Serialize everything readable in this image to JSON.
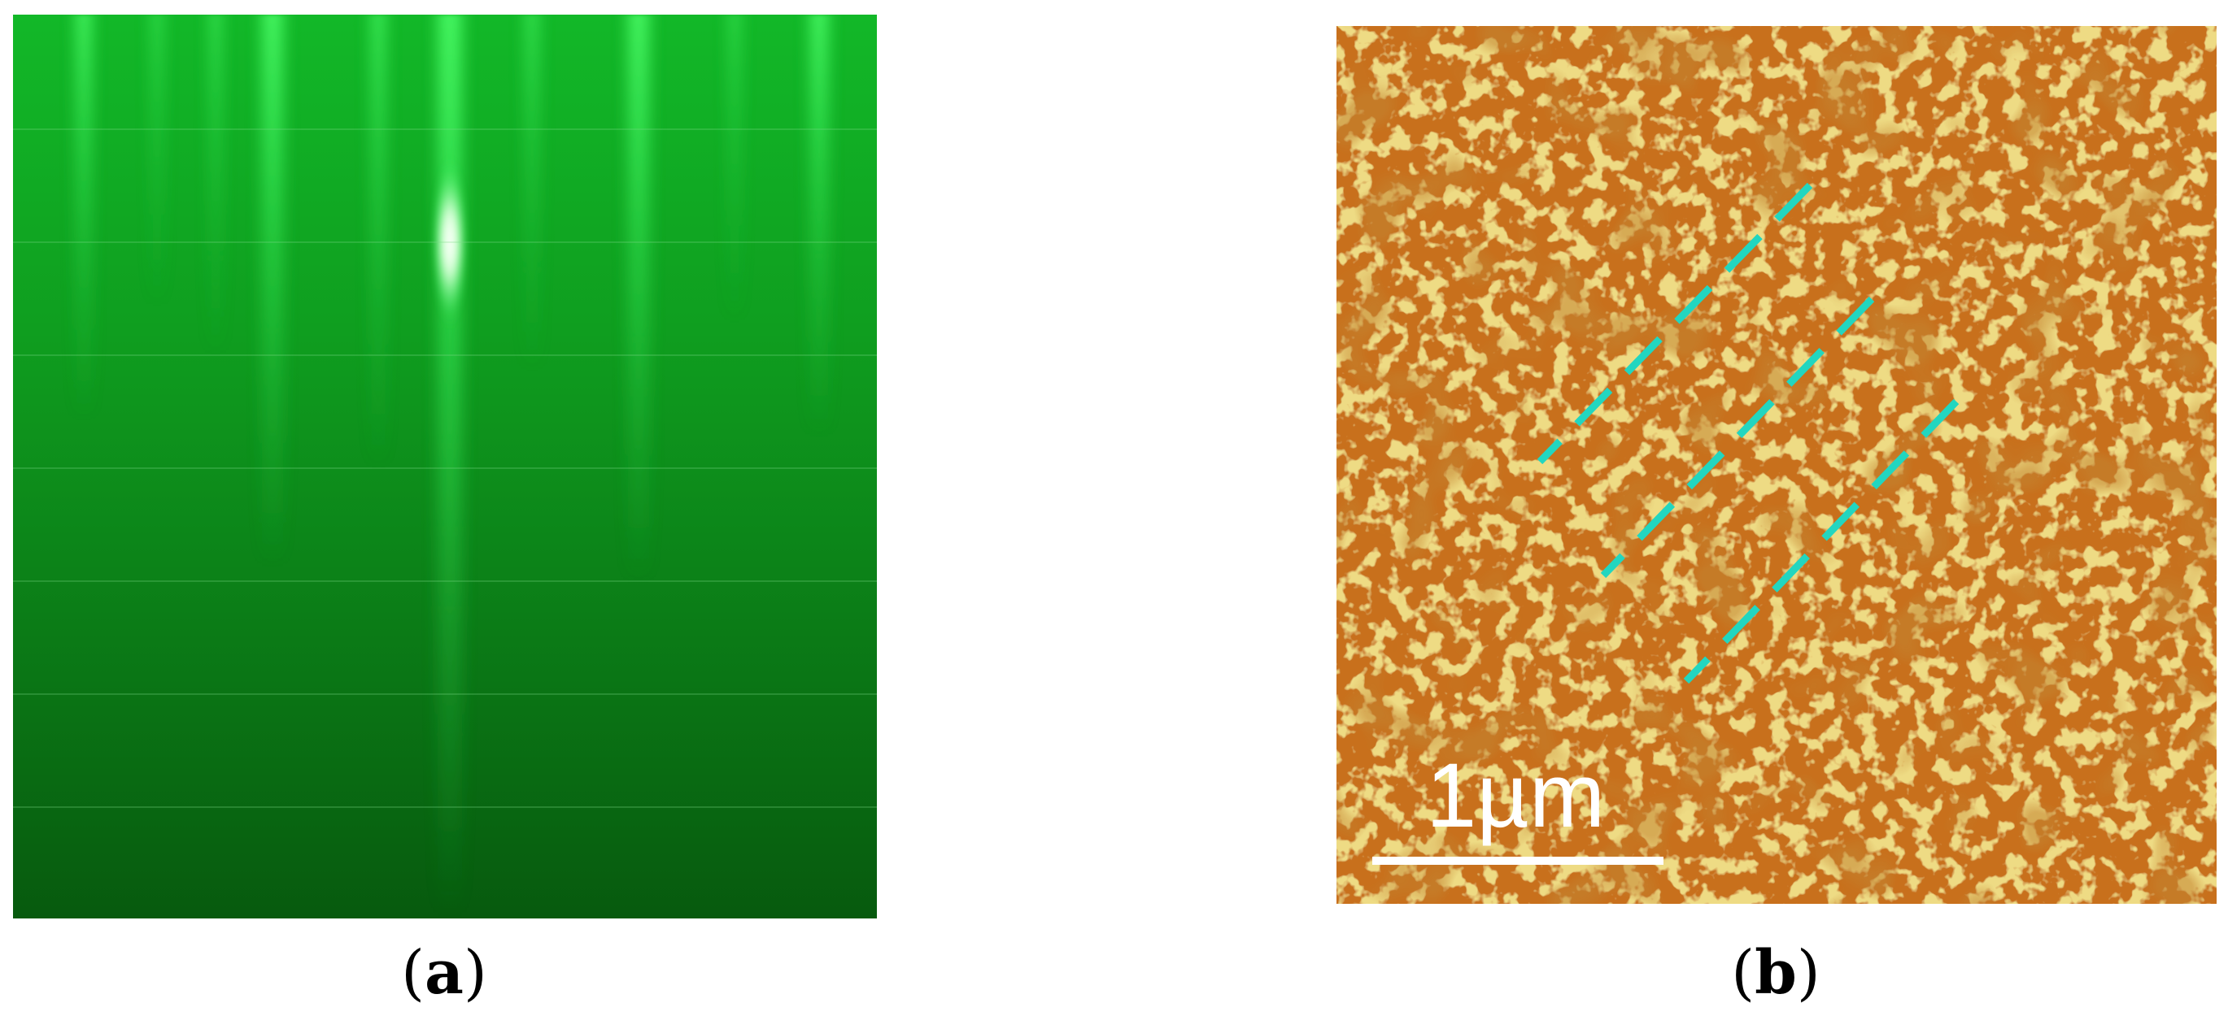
{
  "panels": [
    {
      "caption_open": "(",
      "caption_letter": "a",
      "caption_close": ")"
    },
    {
      "caption_open": "(",
      "caption_letter": "b",
      "caption_close": ")",
      "scale_bar_label": "1µm"
    }
  ],
  "colors": {
    "rheed_dark": "#0a5a10",
    "rheed_mid": "#0f9a1c",
    "rheed_streak": "#39e85a",
    "afm_base": "#c86e12",
    "afm_grain": "#d9b43a",
    "afm_dark": "#8c3a08",
    "dashed_line": "#22d6c0",
    "scale_bar": "#ffffff"
  }
}
